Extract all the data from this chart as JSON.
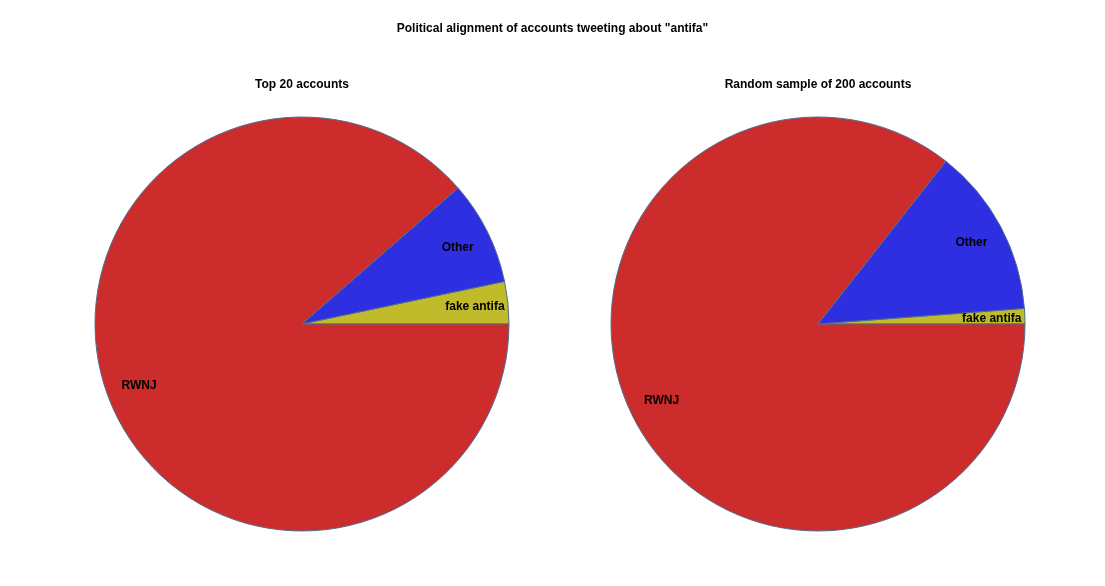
{
  "chart_data": [
    {
      "type": "other",
      "title": "Political alignment of accounts tweeting about \"antifa\""
    },
    {
      "type": "pie",
      "title": "Top 20 accounts",
      "categories": [
        "fake antifa",
        "Other",
        "RWNJ"
      ],
      "values": [
        3.3,
        8.1,
        88.6
      ],
      "colors": [
        "#bfbb2a",
        "#2e2fe0",
        "#cc2c2c"
      ]
    },
    {
      "type": "pie",
      "title": "Random sample of 200 accounts",
      "categories": [
        "fake antifa",
        "Other",
        "RWNJ"
      ],
      "values": [
        1.2,
        13.2,
        85.6
      ],
      "colors": [
        "#bfbb2a",
        "#2e2fe0",
        "#cc2c2c"
      ]
    }
  ]
}
